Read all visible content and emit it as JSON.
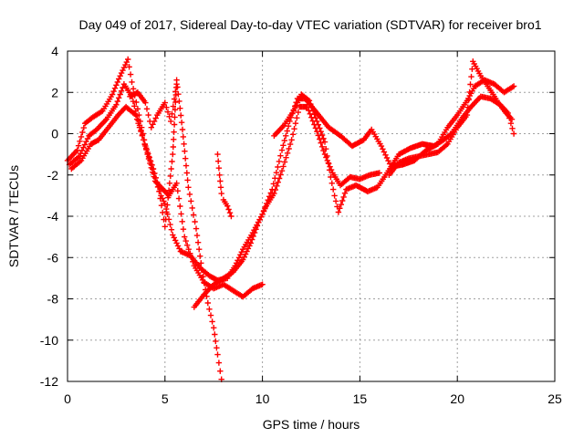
{
  "chart_data": {
    "type": "scatter",
    "title": "Day 049 of 2017, Sidereal Day-to-day VTEC variation (SDTVAR) for receiver bro1",
    "xlabel": "GPS time / hours",
    "ylabel": "SDTVAR / TECUs",
    "xlim": [
      0,
      25
    ],
    "ylim": [
      -12,
      4
    ],
    "xticks": [
      "0",
      "5",
      "10",
      "15",
      "20",
      "25"
    ],
    "yticks": [
      "4",
      "2",
      "0",
      "-2",
      "-4",
      "-6",
      "-8",
      "-10",
      "-12"
    ],
    "grid": true,
    "marker": "+",
    "color": "#ff0000",
    "series": [
      {
        "values": [
          [
            0.0,
            -1.3
          ],
          [
            0.5,
            -0.8
          ],
          [
            0.9,
            0.5
          ],
          [
            1.3,
            0.8
          ],
          [
            1.8,
            1.1
          ],
          [
            2.3,
            1.9
          ],
          [
            2.7,
            2.8
          ],
          [
            3.1,
            3.6
          ],
          [
            3.3,
            2.5
          ],
          [
            3.6,
            1.2
          ],
          [
            4.0,
            -0.6
          ],
          [
            4.4,
            -1.7
          ],
          [
            4.8,
            -3.0
          ],
          [
            5.0,
            -3.4
          ],
          [
            5.4,
            -4.9
          ],
          [
            5.8,
            -5.7
          ],
          [
            6.3,
            -5.9
          ],
          [
            6.8,
            -6.5
          ],
          [
            7.3,
            -6.9
          ],
          [
            7.7,
            -7.1
          ],
          [
            8.2,
            -7.0
          ],
          [
            8.6,
            -6.4
          ],
          [
            9.0,
            -5.6
          ],
          [
            9.5,
            -4.8
          ],
          [
            10.0,
            -3.9
          ],
          [
            10.5,
            -2.7
          ],
          [
            11.0,
            -0.8
          ],
          [
            11.4,
            0.6
          ],
          [
            11.8,
            1.7
          ],
          [
            12.2,
            1.7
          ],
          [
            12.8,
            1.0
          ],
          [
            13.4,
            0.3
          ],
          [
            14.0,
            -0.1
          ],
          [
            14.6,
            -0.6
          ],
          [
            15.2,
            -0.3
          ],
          [
            15.6,
            0.2
          ],
          [
            16.1,
            -0.6
          ],
          [
            16.6,
            -1.6
          ],
          [
            17.2,
            -1.5
          ],
          [
            17.8,
            -1.3
          ],
          [
            18.4,
            -0.8
          ],
          [
            19.0,
            -0.5
          ],
          [
            19.5,
            0.3
          ],
          [
            20.0,
            0.9
          ],
          [
            20.5,
            1.6
          ],
          [
            20.9,
            2.3
          ],
          [
            21.4,
            2.6
          ],
          [
            21.9,
            2.4
          ],
          [
            22.4,
            2.0
          ],
          [
            22.9,
            2.3
          ]
        ]
      },
      {
        "values": [
          [
            0.1,
            -1.5
          ],
          [
            0.6,
            -1.1
          ],
          [
            1.1,
            -0.1
          ],
          [
            1.5,
            0.2
          ],
          [
            2.0,
            0.7
          ],
          [
            2.5,
            1.4
          ],
          [
            2.9,
            2.4
          ],
          [
            3.3,
            1.8
          ],
          [
            3.7,
            0.4
          ],
          [
            4.1,
            -1.0
          ],
          [
            4.5,
            -2.3
          ],
          [
            5.2,
            -3.0
          ],
          [
            5.6,
            -2.4
          ],
          [
            6.0,
            -5.0
          ],
          [
            6.5,
            -6.4
          ],
          [
            7.0,
            -7.2
          ],
          [
            7.5,
            -7.5
          ],
          [
            8.0,
            -7.3
          ],
          [
            8.5,
            -7.6
          ],
          [
            9.0,
            -7.9
          ],
          [
            9.5,
            -7.5
          ],
          [
            10.0,
            -7.3
          ]
        ]
      },
      {
        "values": [
          [
            0.2,
            -1.7
          ],
          [
            0.7,
            -1.3
          ],
          [
            1.2,
            -0.5
          ],
          [
            1.6,
            -0.3
          ],
          [
            2.1,
            0.3
          ],
          [
            2.6,
            0.9
          ],
          [
            3.0,
            1.3
          ],
          [
            3.5,
            0.9
          ],
          [
            3.9,
            -0.3
          ],
          [
            4.3,
            -1.5
          ],
          [
            4.7,
            -2.8
          ],
          [
            5.0,
            -4.5
          ],
          [
            5.4,
            -1.0
          ],
          [
            5.6,
            2.6
          ],
          [
            5.9,
            0.2
          ],
          [
            6.2,
            -2.6
          ],
          [
            6.6,
            -4.6
          ],
          [
            6.9,
            -6.6
          ],
          [
            7.2,
            -8.2
          ],
          [
            7.5,
            -9.4
          ],
          [
            7.7,
            -10.7
          ],
          [
            7.9,
            -11.9
          ]
        ]
      },
      {
        "values": [
          [
            6.5,
            -8.4
          ],
          [
            7.0,
            -7.8
          ],
          [
            7.5,
            -7.3
          ],
          [
            8.0,
            -7.0
          ],
          [
            8.5,
            -6.7
          ],
          [
            9.0,
            -6.1
          ],
          [
            9.4,
            -5.3
          ],
          [
            9.8,
            -4.3
          ],
          [
            10.2,
            -3.5
          ],
          [
            10.6,
            -2.9
          ],
          [
            11.0,
            -1.8
          ],
          [
            11.5,
            -0.3
          ],
          [
            11.9,
            1.3
          ],
          [
            12.3,
            1.3
          ],
          [
            12.8,
            0.1
          ],
          [
            13.2,
            -1.0
          ],
          [
            13.6,
            -1.9
          ],
          [
            14.0,
            -2.5
          ],
          [
            14.5,
            -2.1
          ],
          [
            15.0,
            -2.2
          ],
          [
            15.5,
            -2.0
          ],
          [
            16.0,
            -1.9
          ]
        ]
      },
      {
        "values": [
          [
            10.6,
            -0.1
          ],
          [
            11.1,
            0.4
          ],
          [
            11.6,
            1.1
          ],
          [
            12.0,
            1.9
          ],
          [
            12.4,
            1.6
          ],
          [
            12.8,
            0.6
          ],
          [
            13.2,
            -0.4
          ],
          [
            13.5,
            -2.1
          ],
          [
            13.7,
            -3.0
          ],
          [
            13.9,
            -3.8
          ],
          [
            14.3,
            -2.7
          ],
          [
            14.8,
            -2.5
          ],
          [
            15.4,
            -2.8
          ],
          [
            15.9,
            -2.6
          ],
          [
            16.4,
            -1.9
          ],
          [
            17.0,
            -1.0
          ],
          [
            17.6,
            -0.7
          ],
          [
            18.2,
            -0.5
          ],
          [
            18.8,
            -0.6
          ],
          [
            19.3,
            -0.3
          ],
          [
            19.7,
            0.0
          ],
          [
            20.2,
            0.7
          ],
          [
            20.7,
            1.3
          ],
          [
            21.2,
            1.8
          ],
          [
            21.7,
            1.7
          ],
          [
            22.2,
            1.4
          ],
          [
            22.6,
            1.0
          ],
          [
            22.9,
            0.0
          ]
        ]
      },
      {
        "values": [
          [
            3.2,
            1.8
          ],
          [
            3.6,
            2.0
          ],
          [
            4.0,
            1.5
          ],
          [
            4.3,
            0.3
          ],
          [
            4.6,
            0.9
          ],
          [
            5.0,
            1.5
          ],
          [
            5.3,
            0.6
          ],
          [
            5.6,
            2.4
          ]
        ]
      },
      {
        "values": [
          [
            7.7,
            -1.0
          ],
          [
            7.8,
            -2.0
          ],
          [
            7.9,
            -2.9
          ],
          [
            8.0,
            -3.2
          ],
          [
            8.2,
            -3.5
          ],
          [
            8.4,
            -4.0
          ]
        ]
      },
      {
        "values": [
          [
            16.5,
            -2.0
          ],
          [
            17.0,
            -1.4
          ],
          [
            17.5,
            -1.2
          ],
          [
            18.0,
            -1.1
          ],
          [
            18.5,
            -1.0
          ],
          [
            19.0,
            -0.9
          ],
          [
            19.5,
            -0.5
          ],
          [
            20.0,
            0.3
          ],
          [
            20.5,
            0.9
          ],
          [
            20.8,
            3.5
          ],
          [
            21.2,
            2.8
          ],
          [
            21.7,
            2.1
          ],
          [
            22.1,
            1.5
          ],
          [
            22.5,
            1.0
          ],
          [
            22.8,
            0.7
          ]
        ]
      }
    ]
  }
}
